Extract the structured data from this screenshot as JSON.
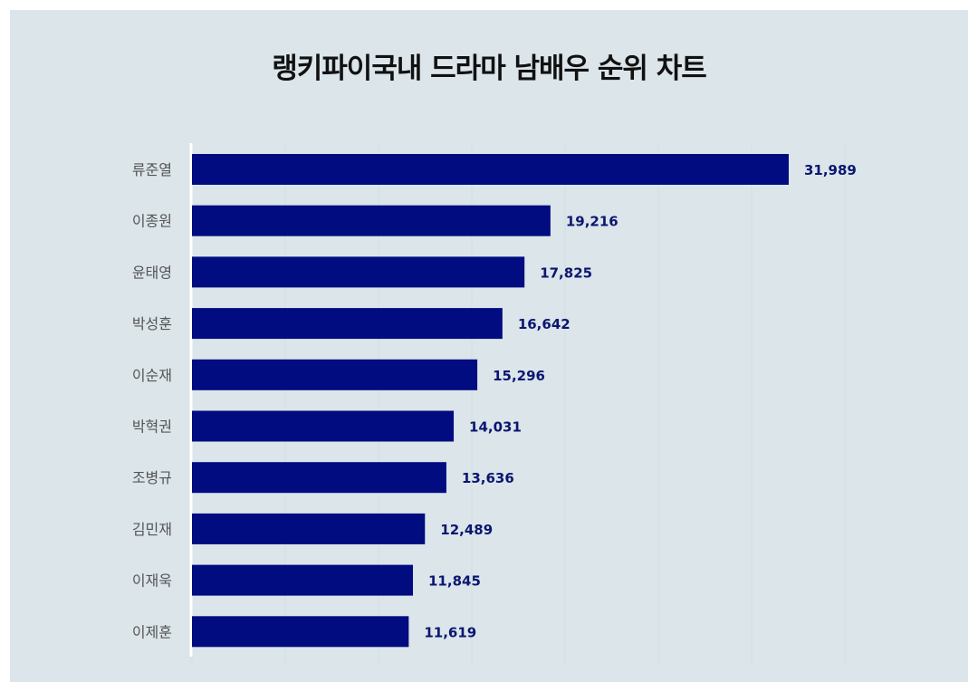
{
  "chart_data": {
    "type": "bar",
    "orientation": "horizontal",
    "title": "랭키파이국내 드라마 남배우 순위 차트",
    "categories": [
      "류준열",
      "이종원",
      "윤태영",
      "박성훈",
      "이순재",
      "박혁권",
      "조병규",
      "김민재",
      "이재욱",
      "이제훈"
    ],
    "values": [
      31989,
      19216,
      17825,
      16642,
      15296,
      14031,
      13636,
      12489,
      11845,
      11619
    ],
    "value_labels": [
      "31,989",
      "19,216",
      "17,825",
      "16,642",
      "15,296",
      "14,031",
      "13,636",
      "12,489",
      "11,845",
      "11,619"
    ],
    "xlabel": "",
    "ylabel": "",
    "xlim": [
      0,
      35000
    ],
    "grid": true,
    "bar_color": "#000c80",
    "label_color": "#0b1670"
  }
}
